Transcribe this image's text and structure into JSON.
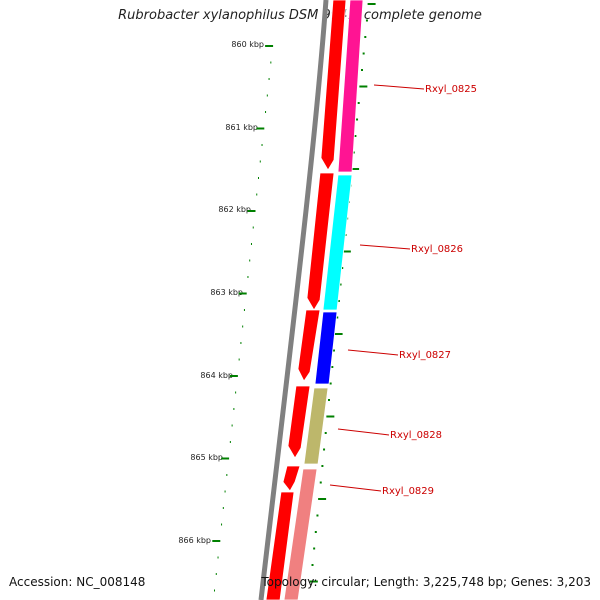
{
  "title": "Rubrobacter xylanophilus DSM 9941, complete genome",
  "accession": "Accession: NC_008148",
  "topology": "Topology: circular; Length: 3,225,748 bp; Genes: 3,203",
  "ruler": {
    "ticks": [
      "860 kbp",
      "861 kbp",
      "862 kbp",
      "863 kbp",
      "864 kbp",
      "865 kbp",
      "866 kbp"
    ]
  },
  "genes": [
    {
      "name": "Rxyl_0825",
      "color": "#ff1493"
    },
    {
      "name": "Rxyl_0826",
      "color": "#00ffff"
    },
    {
      "name": "Rxyl_0827",
      "color": "#0000ff"
    },
    {
      "name": "Rxyl_0828",
      "color": "#bdb76b"
    },
    {
      "name": "Rxyl_0829",
      "color": "#f08080"
    }
  ],
  "colors": {
    "backbone": "#808080",
    "cds": "#ff0000",
    "ruler": "#008000",
    "gene_label": "#cc0000"
  }
}
